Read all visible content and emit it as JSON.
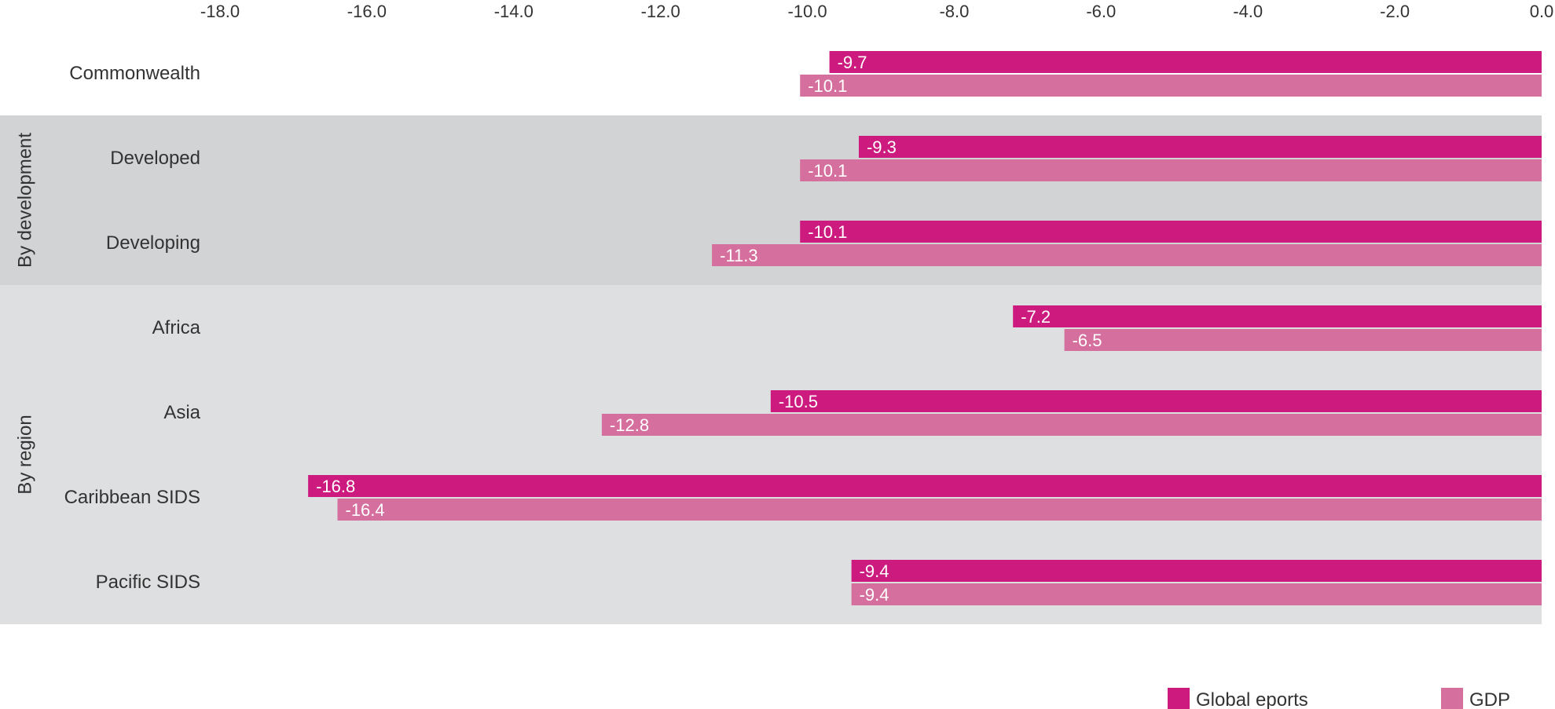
{
  "chart_data": {
    "type": "bar",
    "orientation": "horizontal",
    "xlim": [
      -18.0,
      0.0
    ],
    "x_ticks": [
      "-18.0",
      "-16.0",
      "-14.0",
      "-12.0",
      "-10.0",
      "-8.0",
      "-6.0",
      "-4.0",
      "-2.0",
      "0.0"
    ],
    "x_tick_values": [
      -18,
      -16,
      -14,
      -12,
      -10,
      -8,
      -6,
      -4,
      -2,
      0
    ],
    "x_axis_position": "top",
    "grid": false,
    "legend_position": "bottom-right",
    "categories": [
      "Commonwealth",
      "Developed",
      "Developing",
      "Africa",
      "Asia",
      "Caribbean SIDS",
      "Pacific SIDS"
    ],
    "groups": [
      {
        "label": "",
        "categories": [
          "Commonwealth"
        ],
        "shade": "#ffffff"
      },
      {
        "label": "By development",
        "categories": [
          "Developed",
          "Developing"
        ],
        "shade": "#d2d3d5"
      },
      {
        "label": "By region",
        "categories": [
          "Africa",
          "Asia",
          "Caribbean SIDS",
          "Pacific SIDS"
        ],
        "shade": "#dedfe0"
      }
    ],
    "series": [
      {
        "name": "Global eports",
        "color": "#cc1a7e",
        "values": [
          -9.7,
          -9.3,
          -10.1,
          -7.2,
          -10.5,
          -16.8,
          -9.4
        ],
        "labels": [
          "-9.7",
          "-9.3",
          "-10.1",
          "-7.2",
          "-10.5",
          "-16.8",
          "-9.4"
        ]
      },
      {
        "name": "GDP",
        "color": "#d56f9e",
        "values": [
          -10.1,
          -10.1,
          -11.3,
          -6.5,
          -12.8,
          -16.4,
          -9.4
        ],
        "labels": [
          "-10.1",
          "-10.1",
          "-11.3",
          "-6.5",
          "-12.8",
          "-16.4",
          "-9.4"
        ]
      }
    ]
  }
}
